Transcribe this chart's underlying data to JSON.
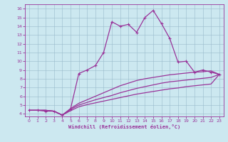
{
  "bg_color": "#cce8f0",
  "line_color": "#993399",
  "grid_color": "#99bbcc",
  "xlim": [
    -0.5,
    23.5
  ],
  "ylim": [
    3.7,
    16.5
  ],
  "xticks": [
    0,
    1,
    2,
    3,
    4,
    5,
    6,
    7,
    8,
    9,
    10,
    11,
    12,
    13,
    14,
    15,
    16,
    17,
    18,
    19,
    20,
    21,
    22,
    23
  ],
  "yticks": [
    4,
    5,
    6,
    7,
    8,
    9,
    10,
    11,
    12,
    13,
    14,
    15,
    16
  ],
  "xlabel": "Windchill (Refroidissement éolien,°C)",
  "curve_main_x": [
    0,
    1,
    2,
    3,
    4,
    5,
    6,
    7,
    8,
    9,
    10,
    11,
    12,
    13,
    14,
    15,
    16,
    17,
    18,
    19,
    20,
    21,
    22,
    23
  ],
  "curve_main_y": [
    4.4,
    4.4,
    4.3,
    4.3,
    3.85,
    4.55,
    8.6,
    9.0,
    9.5,
    11.0,
    14.5,
    14.0,
    14.2,
    13.3,
    15.0,
    15.8,
    14.3,
    12.6,
    9.9,
    10.0,
    8.75,
    9.0,
    8.75,
    8.5
  ],
  "curve_top_x": [
    0,
    1,
    2,
    3,
    4,
    5,
    6,
    7,
    8,
    9,
    10,
    11,
    12,
    13,
    14,
    15,
    16,
    17,
    18,
    19,
    20,
    21,
    22,
    23
  ],
  "curve_top_y": [
    4.4,
    4.4,
    4.4,
    4.3,
    3.85,
    4.6,
    5.2,
    5.6,
    6.0,
    6.4,
    6.8,
    7.2,
    7.5,
    7.8,
    8.0,
    8.15,
    8.3,
    8.45,
    8.55,
    8.65,
    8.75,
    8.8,
    8.9,
    8.5
  ],
  "curve_mid_x": [
    0,
    1,
    2,
    3,
    4,
    5,
    6,
    7,
    8,
    9,
    10,
    11,
    12,
    13,
    14,
    15,
    16,
    17,
    18,
    19,
    20,
    21,
    22,
    23
  ],
  "curve_mid_y": [
    4.4,
    4.4,
    4.4,
    4.3,
    3.85,
    4.5,
    5.0,
    5.3,
    5.6,
    5.85,
    6.1,
    6.4,
    6.65,
    6.9,
    7.1,
    7.3,
    7.5,
    7.65,
    7.75,
    7.85,
    7.95,
    8.05,
    8.15,
    8.5
  ],
  "curve_bot_x": [
    0,
    1,
    2,
    3,
    4,
    5,
    6,
    7,
    8,
    9,
    10,
    11,
    12,
    13,
    14,
    15,
    16,
    17,
    18,
    19,
    20,
    21,
    22,
    23
  ],
  "curve_bot_y": [
    4.4,
    4.4,
    4.4,
    4.3,
    3.85,
    4.35,
    4.8,
    5.05,
    5.25,
    5.45,
    5.65,
    5.85,
    6.05,
    6.25,
    6.4,
    6.55,
    6.7,
    6.85,
    6.95,
    7.1,
    7.2,
    7.3,
    7.4,
    8.5
  ]
}
